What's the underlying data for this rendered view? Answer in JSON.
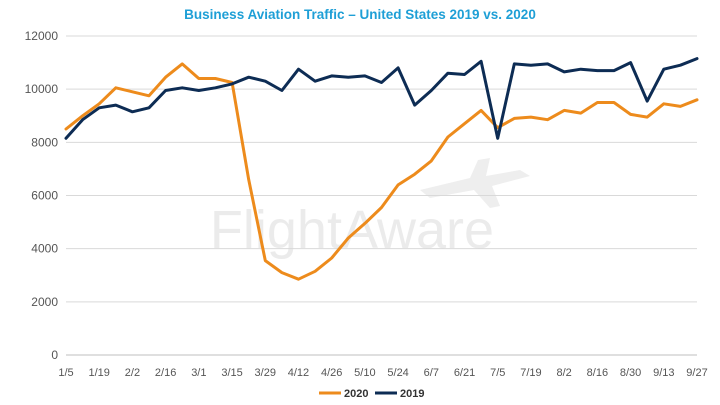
{
  "chart_data": {
    "type": "line",
    "title": "Business Aviation Traffic – United States 2019 vs. 2020",
    "xlabel": "",
    "ylabel": "",
    "ylim": [
      0,
      12000
    ],
    "yticks": [
      "0",
      "2000",
      "4000",
      "6000",
      "8000",
      "10000",
      "12000"
    ],
    "ytick_values": [
      0,
      2000,
      4000,
      6000,
      8000,
      10000,
      12000
    ],
    "xtick_labels": [
      "1/5",
      "1/19",
      "2/2",
      "2/16",
      "3/1",
      "3/15",
      "3/29",
      "4/12",
      "4/26",
      "5/10",
      "5/24",
      "6/7",
      "6/21",
      "7/5",
      "7/19",
      "8/2",
      "8/16",
      "8/30",
      "9/13",
      "9/27"
    ],
    "x": [
      "1/5",
      "1/12",
      "1/19",
      "1/26",
      "2/2",
      "2/9",
      "2/16",
      "2/23",
      "3/1",
      "3/8",
      "3/15",
      "3/22",
      "3/29",
      "4/5",
      "4/12",
      "4/19",
      "4/26",
      "5/3",
      "5/10",
      "5/17",
      "5/24",
      "5/31",
      "6/7",
      "6/14",
      "6/21",
      "6/28",
      "7/5",
      "7/12",
      "7/19",
      "7/26",
      "8/2",
      "8/9",
      "8/16",
      "8/23",
      "8/30",
      "9/6",
      "9/13",
      "9/20",
      "9/27"
    ],
    "grid": "horizontal",
    "legend_position": "bottom",
    "series": [
      {
        "name": "2020",
        "color": "#ed8b1c",
        "values": [
          8500,
          9000,
          9450,
          10050,
          9900,
          9750,
          10450,
          10950,
          10400,
          10400,
          10250,
          6600,
          3550,
          3100,
          2850,
          3150,
          3650,
          4400,
          4950,
          5550,
          6400,
          6800,
          7300,
          8200,
          8700,
          9200,
          8550,
          8900,
          8950,
          8850,
          9200,
          9100,
          9500,
          9500,
          9050,
          8950,
          9450,
          9350,
          9600
        ]
      },
      {
        "name": "2019",
        "color": "#0d2c54",
        "values": [
          8150,
          8850,
          9300,
          9400,
          9150,
          9300,
          9950,
          10050,
          9950,
          10050,
          10200,
          10450,
          10300,
          9950,
          10750,
          10300,
          10500,
          10450,
          10500,
          10250,
          10800,
          9400,
          9950,
          10600,
          10550,
          11050,
          8150,
          10950,
          10900,
          10950,
          10650,
          10750,
          10700,
          10700,
          11000,
          9550,
          10750,
          10900,
          11150
        ]
      }
    ]
  },
  "watermark": "FlightAware"
}
